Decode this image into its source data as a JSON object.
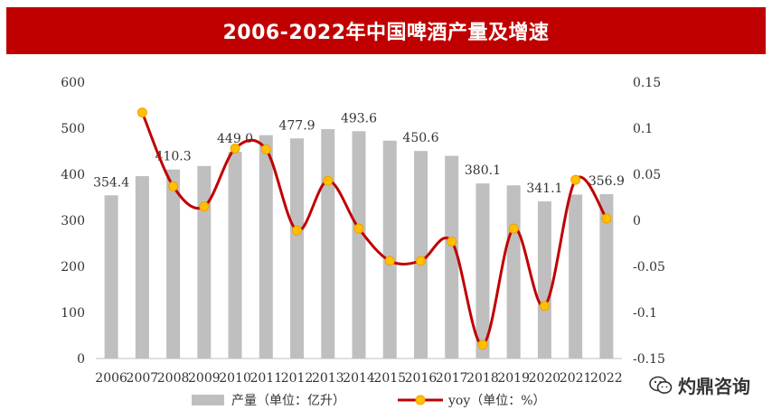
{
  "chart_data": {
    "type": "bar+line",
    "title": "2006-2022年中国啤酒产量及增速",
    "categories": [
      "2006",
      "2007",
      "2008",
      "2009",
      "2010",
      "2011",
      "2012",
      "2013",
      "2014",
      "2015",
      "2016",
      "2017",
      "2018",
      "2019",
      "2020",
      "2021",
      "2022"
    ],
    "series": [
      {
        "name": "产量（单位：亿升）",
        "kind": "bar",
        "axis": "left",
        "color": "#bfbfbf",
        "values": [
          354.4,
          396.0,
          410.3,
          418.0,
          449.0,
          485.0,
          477.9,
          498.0,
          493.6,
          473.0,
          450.6,
          440.0,
          380.1,
          376.0,
          341.1,
          356.0,
          356.9
        ]
      },
      {
        "name": "yoy（单位：%）",
        "kind": "line",
        "axis": "right",
        "color": "#c00000",
        "marker_color": "#ffc000",
        "values": [
          null,
          0.117,
          0.037,
          0.015,
          0.078,
          0.077,
          -0.011,
          0.043,
          -0.009,
          -0.044,
          -0.044,
          -0.023,
          -0.135,
          -0.009,
          -0.093,
          0.044,
          0.002
        ]
      }
    ],
    "data_labels": [
      {
        "index": 0,
        "text": "354.4"
      },
      {
        "index": 2,
        "text": "410.3"
      },
      {
        "index": 4,
        "text": "449.0"
      },
      {
        "index": 6,
        "text": "477.9"
      },
      {
        "index": 8,
        "text": "493.6"
      },
      {
        "index": 10,
        "text": "450.6"
      },
      {
        "index": 12,
        "text": "380.1"
      },
      {
        "index": 14,
        "text": "341.1"
      },
      {
        "index": 16,
        "text": "356.9"
      }
    ],
    "y_left": {
      "min": 0,
      "max": 600,
      "ticks": [
        "0",
        "100",
        "200",
        "300",
        "400",
        "500",
        "600"
      ]
    },
    "y_right": {
      "min": -0.15,
      "max": 0.15,
      "ticks": [
        "-0.15",
        "-0.1",
        "-0.05",
        "0",
        "0.05",
        "0.1",
        "0.15"
      ]
    },
    "legend": {
      "position": "bottom",
      "items": [
        "产量（单位：亿升）",
        "yoy（单位：%）"
      ]
    }
  },
  "watermark": "灼鼎咨询"
}
